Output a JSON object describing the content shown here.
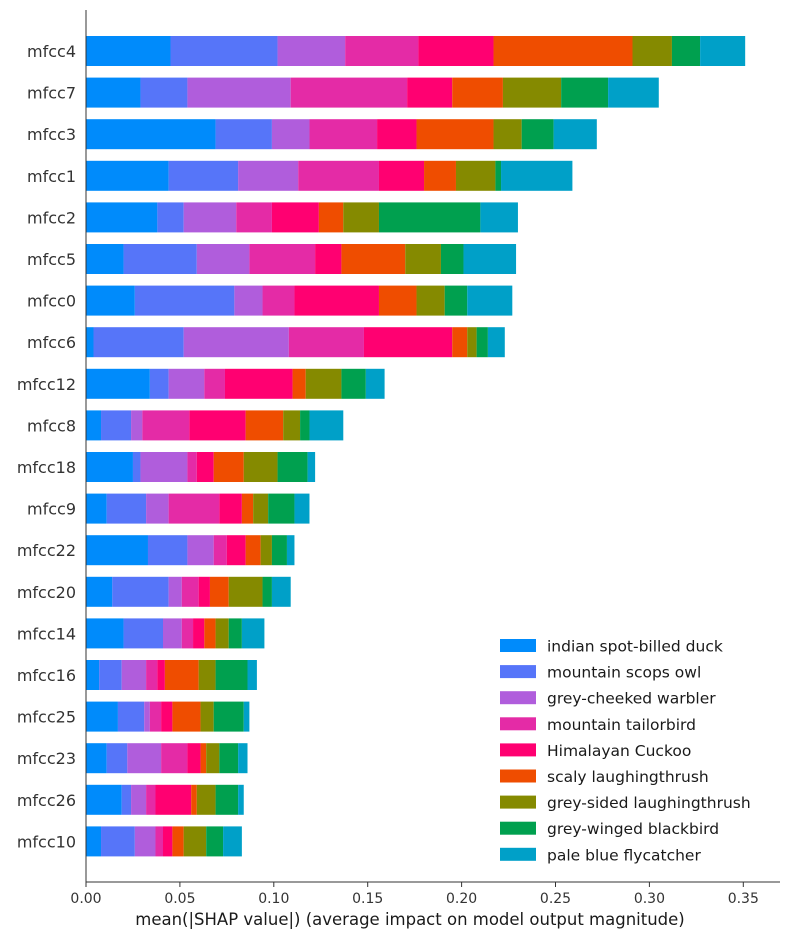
{
  "chart_data": {
    "type": "bar",
    "orientation": "horizontal",
    "stacked": true,
    "xlabel": "mean(|SHAP value|) (average impact on model output magnitude)",
    "ylabel": "",
    "xlim": [
      0,
      0.37
    ],
    "xticks": [
      "0.00",
      "0.05",
      "0.10",
      "0.15",
      "0.20",
      "0.25",
      "0.30",
      "0.35"
    ],
    "grid": false,
    "legend_position": "bottom-right",
    "categories": [
      "mfcc4",
      "mfcc7",
      "mfcc3",
      "mfcc1",
      "mfcc2",
      "mfcc5",
      "mfcc0",
      "mfcc6",
      "mfcc12",
      "mfcc8",
      "mfcc18",
      "mfcc9",
      "mfcc22",
      "mfcc20",
      "mfcc14",
      "mfcc16",
      "mfcc25",
      "mfcc23",
      "mfcc26",
      "mfcc10"
    ],
    "series": [
      {
        "name": "indian spot-billed duck",
        "color": "#008bfb",
        "values": [
          0.045,
          0.029,
          0.069,
          0.044,
          0.038,
          0.02,
          0.026,
          0.004,
          0.034,
          0.008,
          0.025,
          0.011,
          0.033,
          0.014,
          0.02,
          0.007,
          0.017,
          0.011,
          0.019,
          0.008
        ]
      },
      {
        "name": "mountain scops owl",
        "color": "#5675f9",
        "values": [
          0.057,
          0.025,
          0.03,
          0.037,
          0.014,
          0.039,
          0.053,
          0.048,
          0.01,
          0.016,
          0.004,
          0.021,
          0.021,
          0.03,
          0.021,
          0.012,
          0.014,
          0.011,
          0.005,
          0.018
        ]
      },
      {
        "name": "grey-cheeked warbler",
        "color": "#b05ddc",
        "values": [
          0.036,
          0.055,
          0.02,
          0.032,
          0.028,
          0.028,
          0.015,
          0.056,
          0.019,
          0.006,
          0.025,
          0.012,
          0.014,
          0.007,
          0.01,
          0.013,
          0.003,
          0.018,
          0.008,
          0.011
        ]
      },
      {
        "name": "mountain tailorbird",
        "color": "#e42ba6",
        "values": [
          0.039,
          0.062,
          0.036,
          0.043,
          0.019,
          0.035,
          0.017,
          0.04,
          0.011,
          0.025,
          0.005,
          0.027,
          0.007,
          0.009,
          0.006,
          0.006,
          0.006,
          0.014,
          0.005,
          0.004
        ]
      },
      {
        "name": "Himalayan Cuckoo",
        "color": "#ff0071",
        "values": [
          0.04,
          0.024,
          0.021,
          0.024,
          0.025,
          0.014,
          0.045,
          0.047,
          0.036,
          0.03,
          0.009,
          0.012,
          0.01,
          0.006,
          0.006,
          0.004,
          0.006,
          0.007,
          0.019,
          0.005
        ]
      },
      {
        "name": "scaly laughingthrush",
        "color": "#ef4d00",
        "values": [
          0.074,
          0.027,
          0.041,
          0.017,
          0.013,
          0.034,
          0.02,
          0.008,
          0.007,
          0.02,
          0.016,
          0.006,
          0.008,
          0.01,
          0.006,
          0.018,
          0.015,
          0.003,
          0.003,
          0.006
        ]
      },
      {
        "name": "grey-sided laughingthrush",
        "color": "#858a00",
        "values": [
          0.021,
          0.031,
          0.015,
          0.021,
          0.019,
          0.019,
          0.015,
          0.005,
          0.019,
          0.009,
          0.018,
          0.008,
          0.006,
          0.018,
          0.007,
          0.009,
          0.007,
          0.007,
          0.01,
          0.012
        ]
      },
      {
        "name": "grey-winged blackbird",
        "color": "#00a04f",
        "values": [
          0.015,
          0.025,
          0.017,
          0.003,
          0.054,
          0.012,
          0.012,
          0.006,
          0.013,
          0.005,
          0.016,
          0.014,
          0.008,
          0.005,
          0.007,
          0.017,
          0.016,
          0.01,
          0.012,
          0.009
        ]
      },
      {
        "name": "pale blue flycatcher",
        "color": "#00a0c8",
        "values": [
          0.024,
          0.027,
          0.023,
          0.038,
          0.02,
          0.028,
          0.024,
          0.009,
          0.01,
          0.018,
          0.004,
          0.008,
          0.004,
          0.01,
          0.012,
          0.005,
          0.003,
          0.005,
          0.003,
          0.01
        ]
      }
    ]
  }
}
